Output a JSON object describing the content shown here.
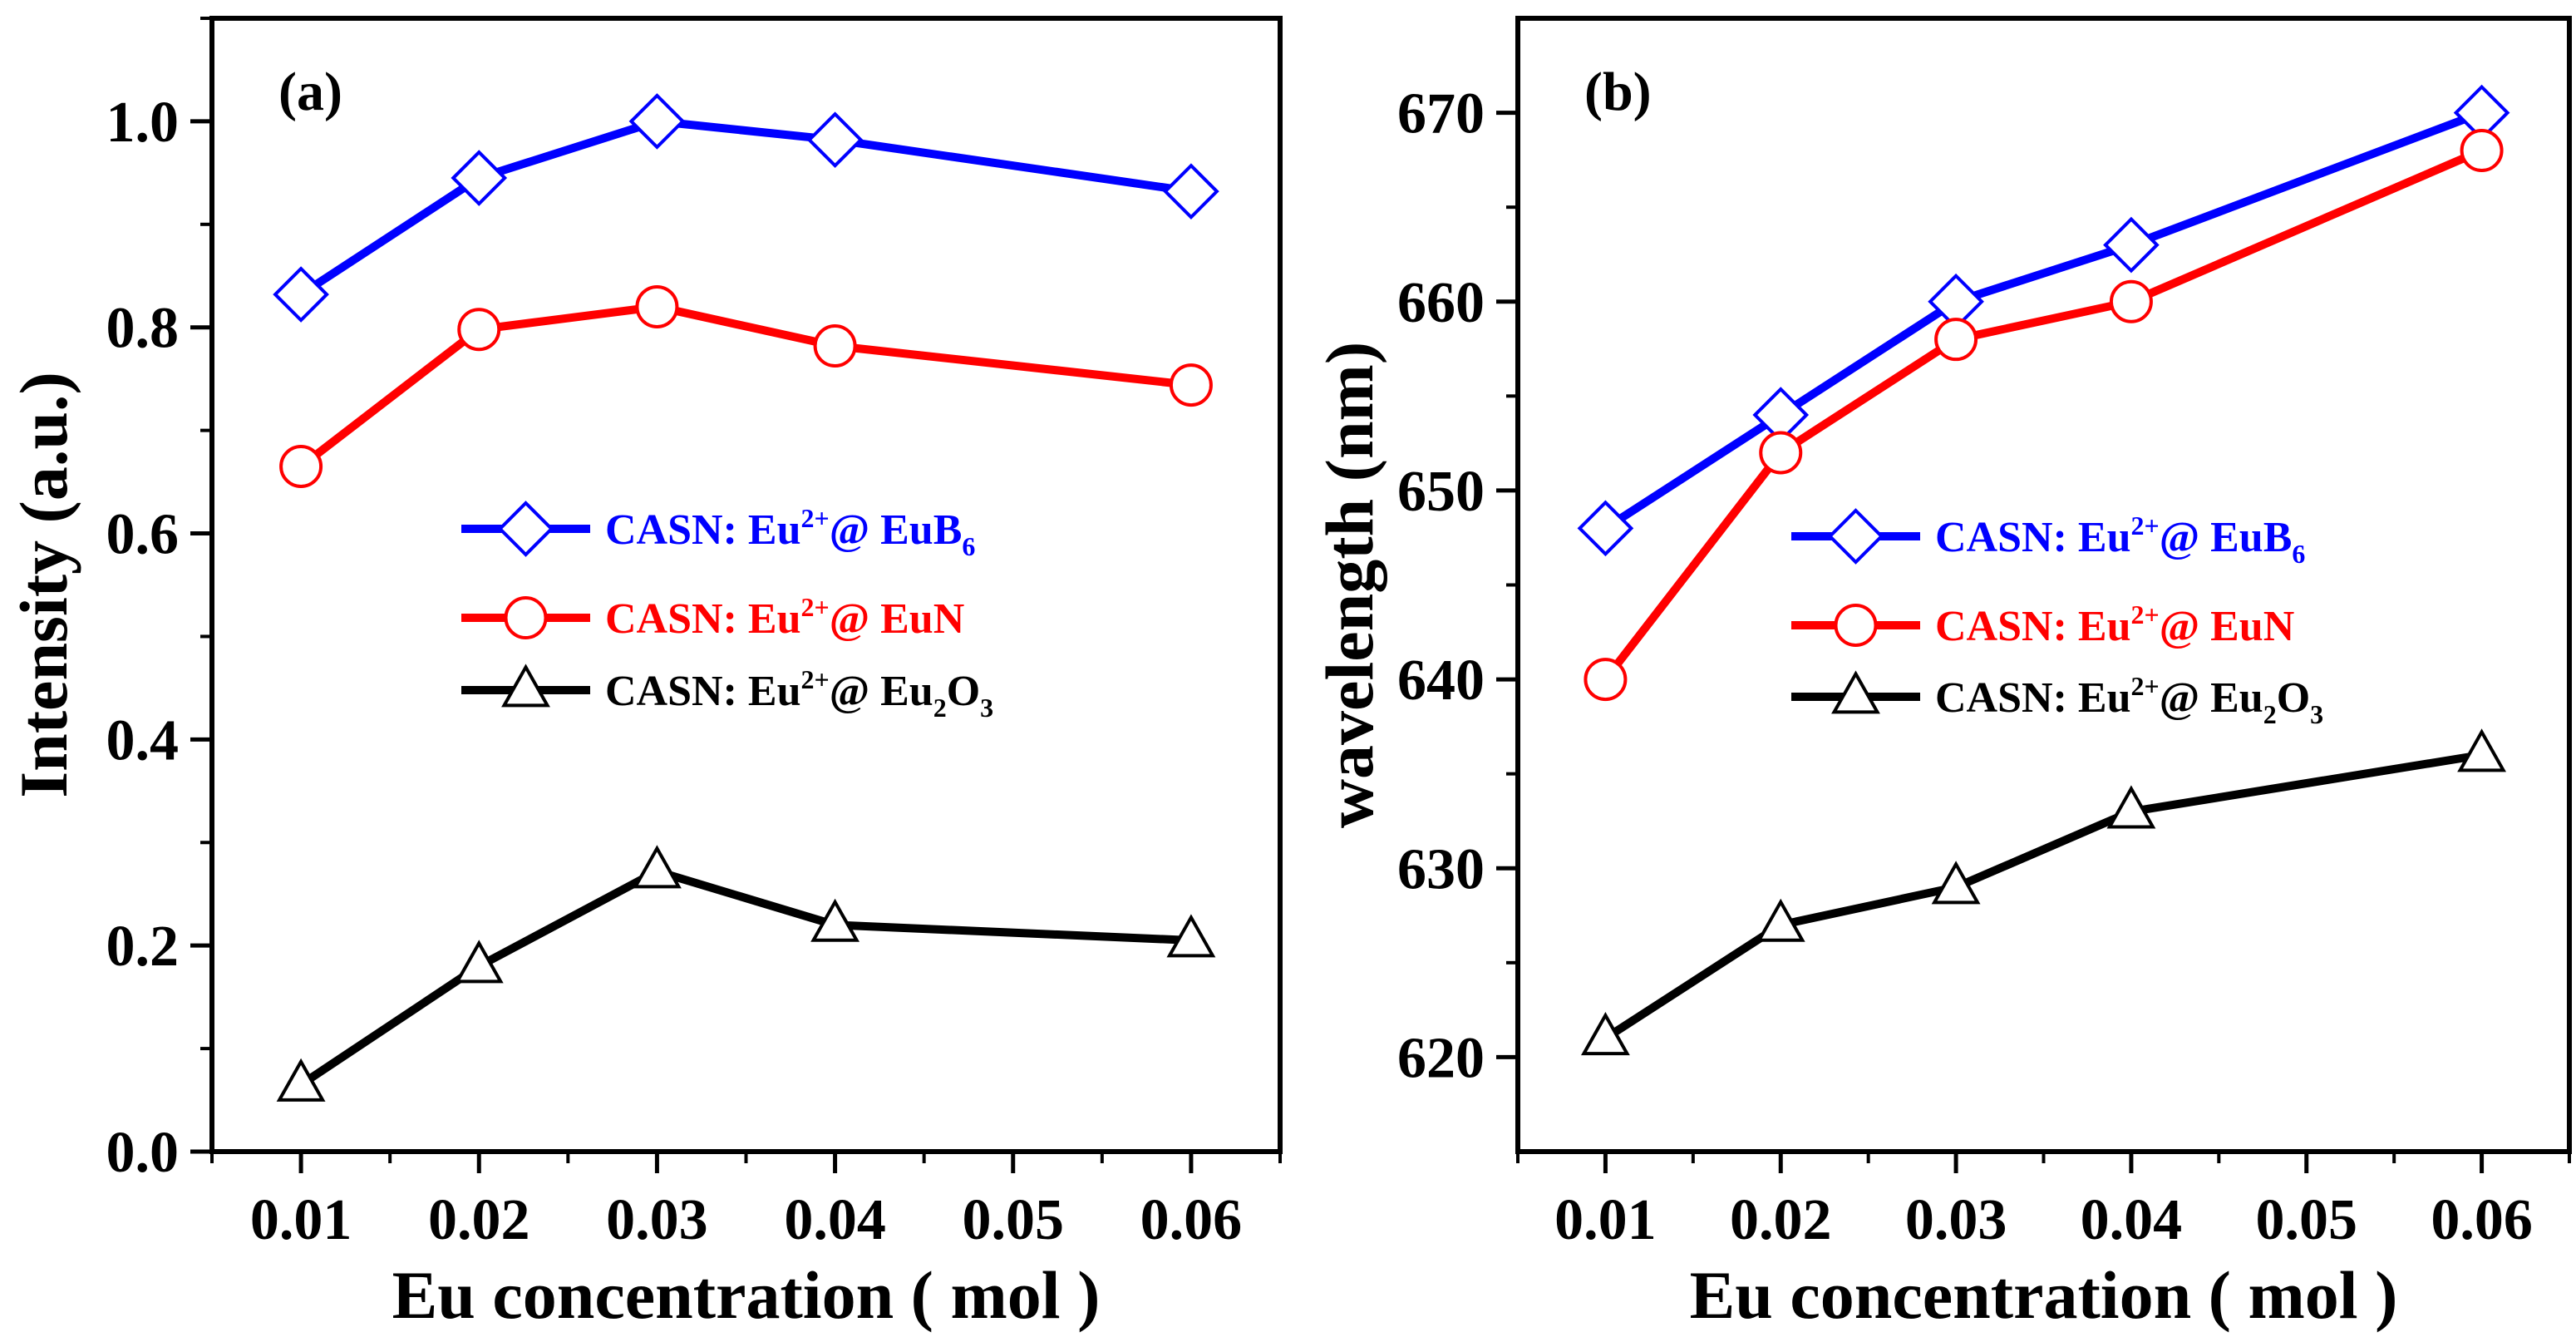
{
  "chart_data": [
    {
      "type": "line",
      "panel_label": "(a)",
      "xlabel": "Eu concentration ( mol )",
      "ylabel": "Intensity (a.u.)",
      "xlim": [
        0.005,
        0.065
      ],
      "ylim": [
        0.0,
        1.1
      ],
      "xticks": [
        0.01,
        0.02,
        0.03,
        0.04,
        0.05,
        0.06
      ],
      "xtick_labels": [
        "0.01",
        "0.02",
        "0.03",
        "0.04",
        "0.05",
        "0.06"
      ],
      "yticks": [
        0.0,
        0.2,
        0.4,
        0.6,
        0.8,
        1.0
      ],
      "ytick_labels": [
        "0.0",
        "0.2",
        "0.4",
        "0.6",
        "0.8",
        "1.0"
      ],
      "legend_position": "center-right",
      "series": [
        {
          "name": "CASN: Eu2+@ EuB6",
          "label_main": "CASN: Eu",
          "label_sup": "2+",
          "label_mid": "@ EuB",
          "label_sub": "6",
          "label_end": "",
          "color": "#0000ff",
          "marker": "diamond",
          "x": [
            0.01,
            0.02,
            0.03,
            0.04,
            0.06
          ],
          "values": [
            0.832,
            0.945,
            1.0,
            0.982,
            0.932
          ]
        },
        {
          "name": "CASN: Eu2+@ EuN",
          "label_main": "CASN: Eu",
          "label_sup": "2+",
          "label_mid": "@ EuN",
          "label_sub": "",
          "label_end": "",
          "color": "#ff0000",
          "marker": "circle",
          "x": [
            0.01,
            0.02,
            0.03,
            0.04,
            0.06
          ],
          "values": [
            0.665,
            0.798,
            0.82,
            0.782,
            0.744
          ]
        },
        {
          "name": "CASN: Eu2+@ Eu2O3",
          "label_main": "CASN: Eu",
          "label_sup": "2+",
          "label_mid": "@ Eu",
          "label_sub": "2",
          "label_end": "O",
          "label_sub2": "3",
          "color": "#000000",
          "marker": "triangle",
          "x": [
            0.01,
            0.02,
            0.03,
            0.04,
            0.06
          ],
          "values": [
            0.065,
            0.18,
            0.272,
            0.22,
            0.205
          ]
        }
      ]
    },
    {
      "type": "line",
      "panel_label": "(b)",
      "xlabel": "Eu concentration ( mol )",
      "ylabel": "wavelength (nm)",
      "xlim": [
        0.005,
        0.065
      ],
      "ylim": [
        615,
        675
      ],
      "xticks": [
        0.01,
        0.02,
        0.03,
        0.04,
        0.05,
        0.06
      ],
      "xtick_labels": [
        "0.01",
        "0.02",
        "0.03",
        "0.04",
        "0.05",
        "0.06"
      ],
      "yticks": [
        620,
        630,
        640,
        650,
        660,
        670
      ],
      "ytick_labels": [
        "620",
        "630",
        "640",
        "650",
        "660",
        "670"
      ],
      "legend_position": "center-right",
      "series": [
        {
          "name": "CASN: Eu2+@ EuB6",
          "label_main": "CASN: Eu",
          "label_sup": "2+",
          "label_mid": "@ EuB",
          "label_sub": "6",
          "label_end": "",
          "color": "#0000ff",
          "marker": "diamond",
          "x": [
            0.01,
            0.02,
            0.03,
            0.04,
            0.06
          ],
          "values": [
            648,
            654,
            660,
            663,
            670
          ]
        },
        {
          "name": "CASN: Eu2+@ EuN",
          "label_main": "CASN: Eu",
          "label_sup": "2+",
          "label_mid": "@ EuN",
          "label_sub": "",
          "label_end": "",
          "color": "#ff0000",
          "marker": "circle",
          "x": [
            0.01,
            0.02,
            0.03,
            0.04,
            0.06
          ],
          "values": [
            640,
            652,
            658,
            660,
            668
          ]
        },
        {
          "name": "CASN: Eu2+@ Eu2O3",
          "label_main": "CASN: Eu",
          "label_sup": "2+",
          "label_mid": "@ Eu",
          "label_sub": "2",
          "label_end": "O",
          "label_sub2": "3",
          "color": "#000000",
          "marker": "triangle",
          "x": [
            0.01,
            0.02,
            0.03,
            0.04,
            0.06
          ],
          "values": [
            621,
            627,
            629,
            633,
            636
          ]
        }
      ]
    }
  ]
}
